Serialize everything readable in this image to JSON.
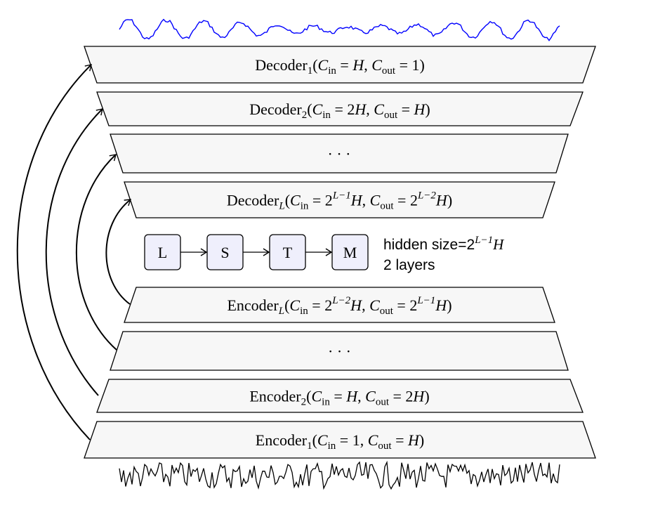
{
  "colors": {
    "block_fill": "#f7f7f7",
    "lstm_fill": "#efeffc",
    "output_signal": "#0000ff",
    "input_signal": "#000000"
  },
  "decoders": [
    {
      "id": "decoder-1",
      "segments": [
        [
          "Decoder",
          ""
        ],
        [
          "1",
          "sub"
        ],
        [
          "(",
          ""
        ],
        [
          "C",
          "i"
        ],
        [
          "in",
          "sub"
        ],
        [
          " = ",
          ""
        ],
        [
          "H",
          "i"
        ],
        [
          ", ",
          ""
        ],
        [
          "C",
          "i"
        ],
        [
          "out",
          "sub"
        ],
        [
          " = 1)",
          ""
        ]
      ]
    },
    {
      "id": "decoder-2",
      "segments": [
        [
          "Decoder",
          ""
        ],
        [
          "2",
          "sub"
        ],
        [
          "(",
          ""
        ],
        [
          "C",
          "i"
        ],
        [
          "in",
          "sub"
        ],
        [
          " = 2",
          ""
        ],
        [
          "H",
          "i"
        ],
        [
          ", ",
          ""
        ],
        [
          "C",
          "i"
        ],
        [
          "out",
          "sub"
        ],
        [
          " = ",
          ""
        ],
        [
          "H",
          "i"
        ],
        [
          ")",
          ""
        ]
      ]
    },
    {
      "id": "decoder-ellipsis",
      "segments": [
        [
          "· · ·",
          ""
        ]
      ]
    },
    {
      "id": "decoder-L",
      "segments": [
        [
          "Decoder",
          ""
        ],
        [
          "L",
          "subi"
        ],
        [
          "(",
          ""
        ],
        [
          "C",
          "i"
        ],
        [
          "in",
          "sub"
        ],
        [
          " = 2",
          ""
        ],
        [
          "L−1",
          "sup"
        ],
        [
          "H",
          "i"
        ],
        [
          ", ",
          ""
        ],
        [
          "C",
          "i"
        ],
        [
          "out",
          "sub"
        ],
        [
          " = 2",
          ""
        ],
        [
          "L−2",
          "sup"
        ],
        [
          "H",
          "i"
        ],
        [
          ")",
          ""
        ]
      ]
    }
  ],
  "encoders": [
    {
      "id": "encoder-L",
      "segments": [
        [
          "Encoder",
          ""
        ],
        [
          "L",
          "subi"
        ],
        [
          "(",
          ""
        ],
        [
          "C",
          "i"
        ],
        [
          "in",
          "sub"
        ],
        [
          " = 2",
          ""
        ],
        [
          "L−2",
          "sup"
        ],
        [
          "H",
          "i"
        ],
        [
          ", ",
          ""
        ],
        [
          "C",
          "i"
        ],
        [
          "out",
          "sub"
        ],
        [
          " = 2",
          ""
        ],
        [
          "L−1",
          "sup"
        ],
        [
          "H",
          "i"
        ],
        [
          ")",
          ""
        ]
      ]
    },
    {
      "id": "encoder-ellipsis",
      "segments": [
        [
          "· · ·",
          ""
        ]
      ]
    },
    {
      "id": "encoder-2",
      "segments": [
        [
          "Encoder",
          ""
        ],
        [
          "2",
          "sub"
        ],
        [
          "(",
          ""
        ],
        [
          "C",
          "i"
        ],
        [
          "in",
          "sub"
        ],
        [
          " = ",
          ""
        ],
        [
          "H",
          "i"
        ],
        [
          ", ",
          ""
        ],
        [
          "C",
          "i"
        ],
        [
          "out",
          "sub"
        ],
        [
          " = 2",
          ""
        ],
        [
          "H",
          "i"
        ],
        [
          ")",
          ""
        ]
      ]
    },
    {
      "id": "encoder-1",
      "segments": [
        [
          "Encoder",
          ""
        ],
        [
          "1",
          "sub"
        ],
        [
          "(",
          ""
        ],
        [
          "C",
          "i"
        ],
        [
          "in",
          "sub"
        ],
        [
          " = 1, ",
          ""
        ],
        [
          "C",
          "i"
        ],
        [
          "out",
          "sub"
        ],
        [
          " = ",
          ""
        ],
        [
          "H",
          "i"
        ],
        [
          ")",
          ""
        ]
      ]
    }
  ],
  "lstm": {
    "letters": [
      "L",
      "S",
      "T",
      "M"
    ],
    "hidden_size_label": "hidden size=2",
    "hidden_size_exp": "L−1",
    "hidden_size_var": "H",
    "layers_label": "2 layers"
  }
}
